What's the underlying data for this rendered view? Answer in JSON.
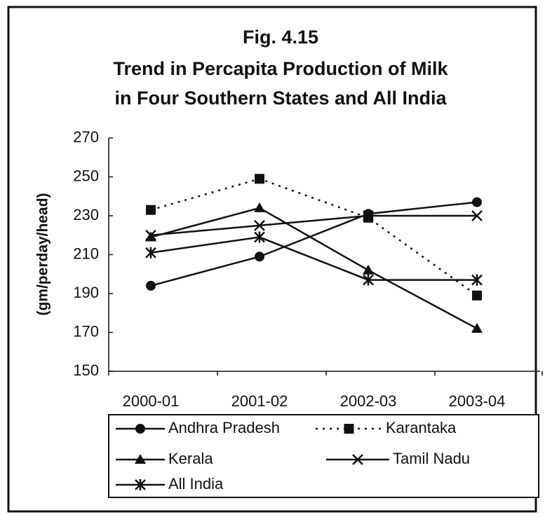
{
  "chart_data": {
    "type": "line",
    "title": [
      "Fig. 4.15",
      "Trend in Percapita Production of Milk",
      "in Four Southern States and All India"
    ],
    "y_label": "(gm/perday/head)",
    "categories": [
      "2000-01",
      "2001-02",
      "2002-03",
      "2003-04"
    ],
    "series": [
      {
        "name": "Andhra Pradesh",
        "color": "#111111",
        "marker": "circle",
        "values": [
          194,
          209,
          231,
          237
        ]
      },
      {
        "name": "Karantaka",
        "color": "#111111",
        "marker": "square",
        "dash": "3,7",
        "values": [
          233,
          249,
          229,
          189
        ]
      },
      {
        "name": "Kerala",
        "color": "#111111",
        "marker": "triangle",
        "values": [
          219,
          234,
          202,
          172
        ]
      },
      {
        "name": "Tamil Nadu",
        "color": "#111111",
        "marker": "x",
        "values": [
          220,
          225,
          230,
          230
        ]
      },
      {
        "name": "All India",
        "color": "#111111",
        "marker": "star",
        "values": [
          211,
          219,
          197,
          197
        ]
      }
    ],
    "ylim": [
      150,
      270
    ],
    "yticks": [
      150,
      170,
      190,
      210,
      230,
      250,
      270
    ],
    "grid": false
  }
}
